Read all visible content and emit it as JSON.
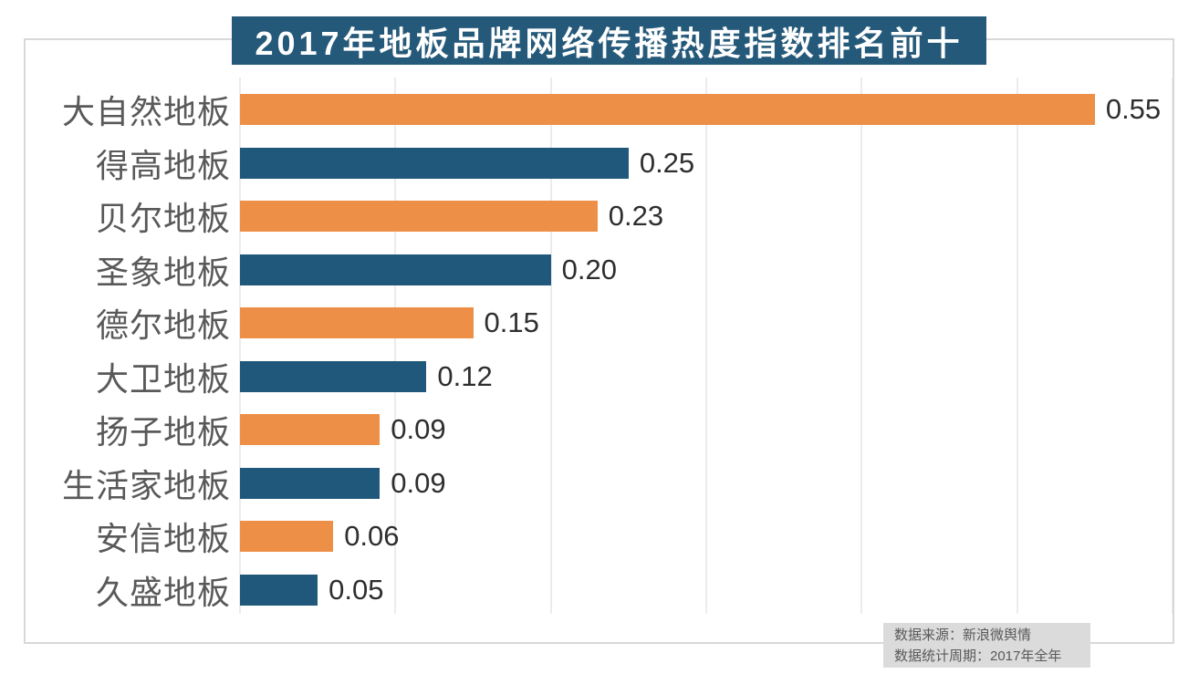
{
  "title_banner": {
    "text": "2017年地板品牌网络传播热度指数排名前十",
    "bg": "#25597A",
    "text_color": "#FFFFFF"
  },
  "chart_data": {
    "type": "bar",
    "orientation": "horizontal",
    "title": "2017年地板品牌网络传播热度指数排名前十",
    "categories": [
      "大自然地板",
      "得高地板",
      "贝尔地板",
      "圣象地板",
      "德尔地板",
      "大卫地板",
      "扬子地板",
      "生活家地板",
      "安信地板",
      "久盛地板"
    ],
    "values": [
      0.55,
      0.25,
      0.23,
      0.2,
      0.15,
      0.12,
      0.09,
      0.09,
      0.06,
      0.05
    ],
    "value_labels": [
      "0.55",
      "0.25",
      "0.23",
      "0.20",
      "0.15",
      "0.12",
      "0.09",
      "0.09",
      "0.06",
      "0.05"
    ],
    "xlabel": "",
    "ylabel": "",
    "xlim": [
      0,
      0.6
    ],
    "grid_step": 0.1,
    "grid": true,
    "legend_position": "none",
    "bar_palette": [
      "#ED8F47",
      "#1F587A"
    ]
  },
  "source_note": {
    "line1": "数据来源：新浪微舆情",
    "line2": "数据统计周期：2017年全年"
  },
  "colors": {
    "bar_orange": "#ED8F47",
    "bar_blue": "#1F587A",
    "banner_bg": "#25597A",
    "gridline": "#D9D9D9",
    "frame_border": "#D8D8D8",
    "category_text": "#595959",
    "value_text": "#2E2E2E",
    "source_bg": "#DBDBDB",
    "source_text": "#595959"
  }
}
